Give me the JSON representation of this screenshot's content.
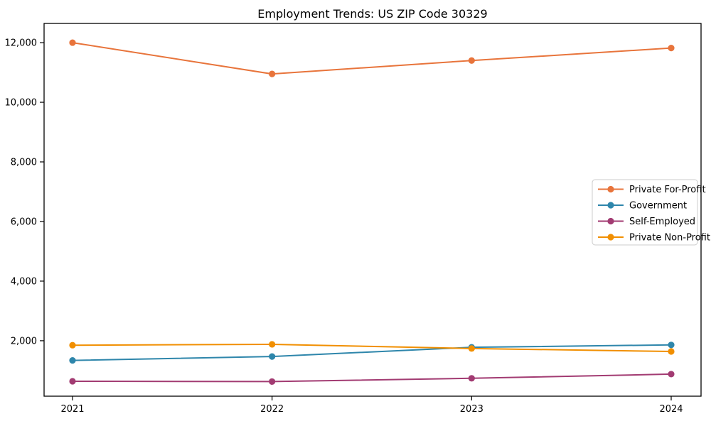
{
  "figure": {
    "title": "Employment Trends: US ZIP Code 30329"
  },
  "chart_data": {
    "type": "line",
    "title": "Employment Trends: US ZIP Code 30329",
    "categories": [
      "2021",
      "2022",
      "2023",
      "2024"
    ],
    "series": [
      {
        "name": "Private For-Profit",
        "color": "#E8743B",
        "values": [
          12000,
          10950,
          11400,
          11820
        ]
      },
      {
        "name": "Government",
        "color": "#2E86AB",
        "values": [
          1340,
          1470,
          1780,
          1860
        ]
      },
      {
        "name": "Self-Employed",
        "color": "#A23B72",
        "values": [
          640,
          630,
          740,
          880
        ]
      },
      {
        "name": "Private Non-Profit",
        "color": "#F18F01",
        "values": [
          1850,
          1880,
          1740,
          1640
        ]
      }
    ],
    "xlabel": "",
    "ylabel": "",
    "ylim": [
      140,
      12645
    ],
    "yticks": [
      2000,
      4000,
      6000,
      8000,
      10000,
      12000
    ],
    "ytick_labels": [
      "2,000",
      "4,000",
      "6,000",
      "8,000",
      "10,000",
      "12,000"
    ],
    "grid": false,
    "legend_position": "center right",
    "marker": "circle",
    "background": "#ffffff",
    "axis_color": "#000000",
    "legend_border_color": "#cccccc"
  }
}
